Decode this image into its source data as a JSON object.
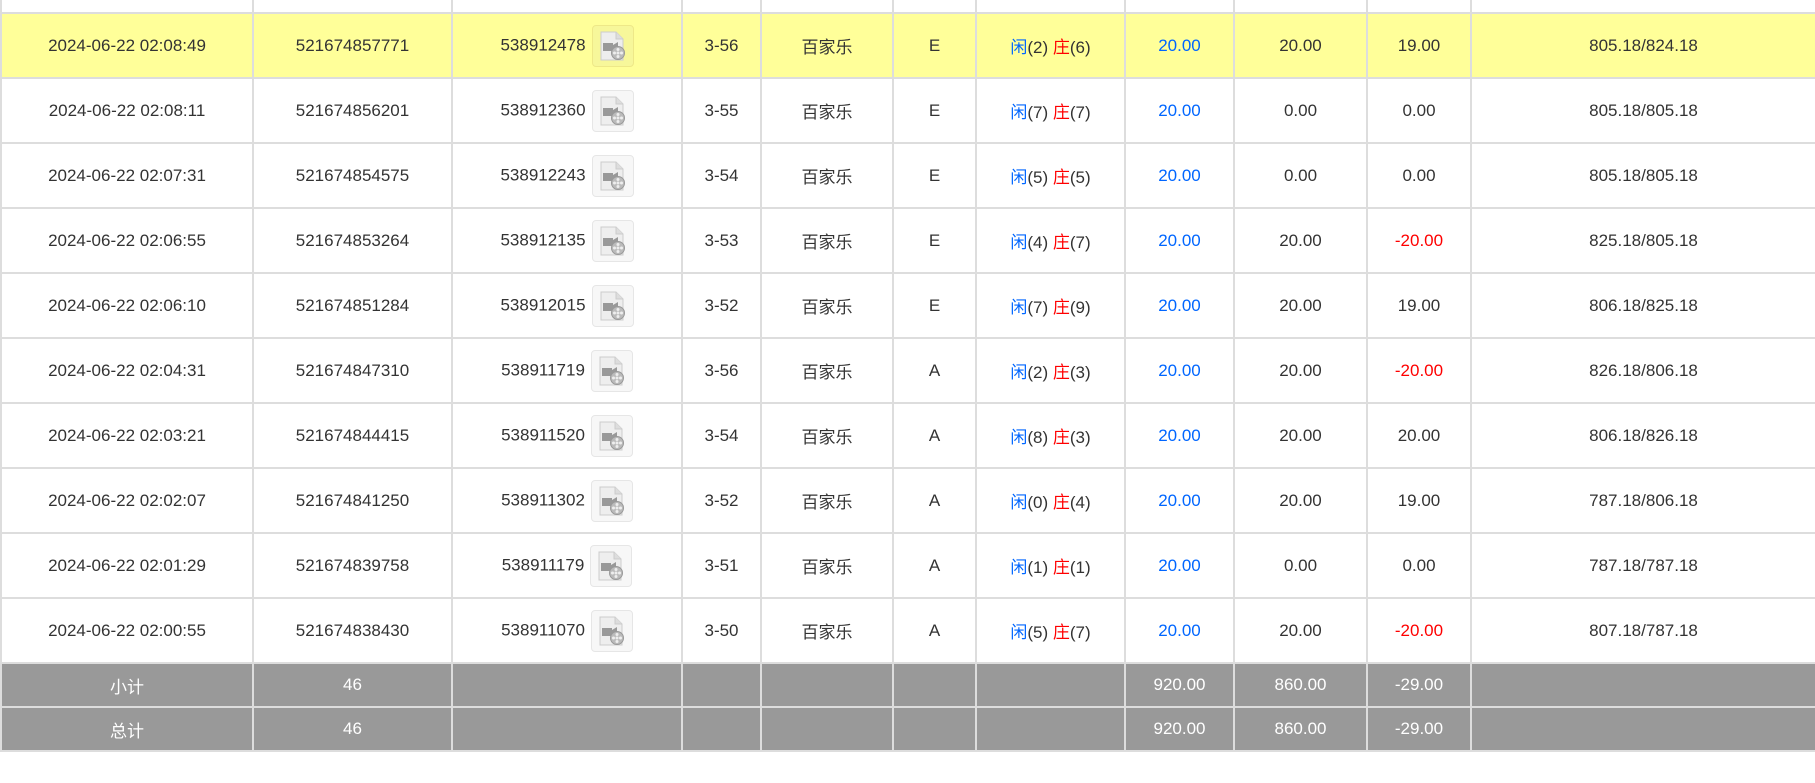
{
  "colors": {
    "highlight": "#ffff99",
    "summary_bg": "#999999",
    "player": "#0066ff",
    "banker": "#ff0000",
    "negative": "#ff0000",
    "bet": "#0066ff"
  },
  "icons": {
    "replay": "video-file-icon"
  },
  "rows": [
    {
      "time": "",
      "order": "",
      "round": "",
      "table": "",
      "game": "",
      "seat": "",
      "player": "",
      "banker": "",
      "bet": "",
      "valid": "",
      "win": "",
      "balance": "",
      "partial": true
    },
    {
      "time": "2024-06-22 02:08:49",
      "order": "521674857771",
      "round": "538912478",
      "table": "3-56",
      "game": "百家乐",
      "seat": "E",
      "player_label": "闲",
      "player": "(2)",
      "banker_label": "庄",
      "banker": "(6)",
      "bet": "20.00",
      "valid": "20.00",
      "win": "19.00",
      "balance": "805.18/824.18",
      "highlight": true
    },
    {
      "time": "2024-06-22 02:08:11",
      "order": "521674856201",
      "round": "538912360",
      "table": "3-55",
      "game": "百家乐",
      "seat": "E",
      "player_label": "闲",
      "player": "(7)",
      "banker_label": "庄",
      "banker": "(7)",
      "bet": "20.00",
      "valid": "0.00",
      "win": "0.00",
      "balance": "805.18/805.18"
    },
    {
      "time": "2024-06-22 02:07:31",
      "order": "521674854575",
      "round": "538912243",
      "table": "3-54",
      "game": "百家乐",
      "seat": "E",
      "player_label": "闲",
      "player": "(5)",
      "banker_label": "庄",
      "banker": "(5)",
      "bet": "20.00",
      "valid": "0.00",
      "win": "0.00",
      "balance": "805.18/805.18"
    },
    {
      "time": "2024-06-22 02:06:55",
      "order": "521674853264",
      "round": "538912135",
      "table": "3-53",
      "game": "百家乐",
      "seat": "E",
      "player_label": "闲",
      "player": "(4)",
      "banker_label": "庄",
      "banker": "(7)",
      "bet": "20.00",
      "valid": "20.00",
      "win": "-20.00",
      "balance": "825.18/805.18"
    },
    {
      "time": "2024-06-22 02:06:10",
      "order": "521674851284",
      "round": "538912015",
      "table": "3-52",
      "game": "百家乐",
      "seat": "E",
      "player_label": "闲",
      "player": "(7)",
      "banker_label": "庄",
      "banker": "(9)",
      "bet": "20.00",
      "valid": "20.00",
      "win": "19.00",
      "balance": "806.18/825.18"
    },
    {
      "time": "2024-06-22 02:04:31",
      "order": "521674847310",
      "round": "538911719",
      "table": "3-56",
      "game": "百家乐",
      "seat": "A",
      "player_label": "闲",
      "player": "(2)",
      "banker_label": "庄",
      "banker": "(3)",
      "bet": "20.00",
      "valid": "20.00",
      "win": "-20.00",
      "balance": "826.18/806.18"
    },
    {
      "time": "2024-06-22 02:03:21",
      "order": "521674844415",
      "round": "538911520",
      "table": "3-54",
      "game": "百家乐",
      "seat": "A",
      "player_label": "闲",
      "player": "(8)",
      "banker_label": "庄",
      "banker": "(3)",
      "bet": "20.00",
      "valid": "20.00",
      "win": "20.00",
      "balance": "806.18/826.18"
    },
    {
      "time": "2024-06-22 02:02:07",
      "order": "521674841250",
      "round": "538911302",
      "table": "3-52",
      "game": "百家乐",
      "seat": "A",
      "player_label": "闲",
      "player": "(0)",
      "banker_label": "庄",
      "banker": "(4)",
      "bet": "20.00",
      "valid": "20.00",
      "win": "19.00",
      "balance": "787.18/806.18"
    },
    {
      "time": "2024-06-22 02:01:29",
      "order": "521674839758",
      "round": "538911179",
      "table": "3-51",
      "game": "百家乐",
      "seat": "A",
      "player_label": "闲",
      "player": "(1)",
      "banker_label": "庄",
      "banker": "(1)",
      "bet": "20.00",
      "valid": "0.00",
      "win": "0.00",
      "balance": "787.18/787.18"
    },
    {
      "time": "2024-06-22 02:00:55",
      "order": "521674838430",
      "round": "538911070",
      "table": "3-50",
      "game": "百家乐",
      "seat": "A",
      "player_label": "闲",
      "player": "(5)",
      "banker_label": "庄",
      "banker": "(7)",
      "bet": "20.00",
      "valid": "20.00",
      "win": "-20.00",
      "balance": "807.18/787.18"
    }
  ],
  "subtotal": {
    "label": "小计",
    "count": "46",
    "bet": "920.00",
    "valid": "860.00",
    "win": "-29.00"
  },
  "total": {
    "label": "总计",
    "count": "46",
    "bet": "920.00",
    "valid": "860.00",
    "win": "-29.00"
  }
}
